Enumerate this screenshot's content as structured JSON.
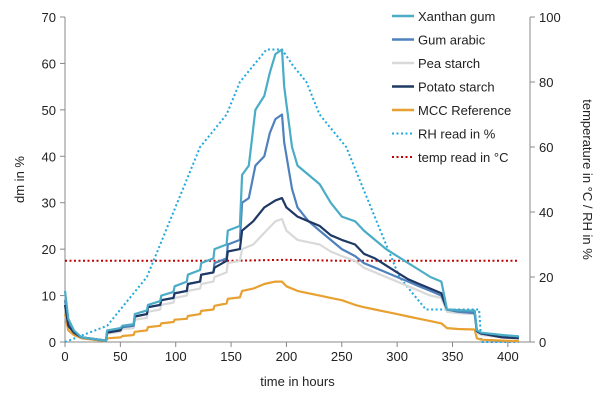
{
  "chart_data": {
    "type": "line",
    "xlabel": "time in hours",
    "ylabel": "dm in %",
    "y2label": "temperature in °C / RH in %",
    "xlim": [
      0,
      420
    ],
    "ylim": [
      0,
      70
    ],
    "y2lim": [
      0,
      100
    ],
    "xticks": [
      0,
      50,
      100,
      150,
      200,
      250,
      300,
      350,
      400
    ],
    "yticks": [
      0,
      10,
      20,
      30,
      40,
      50,
      60,
      70
    ],
    "y2ticks": [
      0,
      20,
      40,
      60,
      80,
      100
    ],
    "grid": false,
    "legend_position": "top-right",
    "series": [
      {
        "name": "Xanthan gum",
        "axis": "left",
        "color": "#4aacc6",
        "dash": "solid",
        "x": [
          0,
          3,
          8,
          15,
          37,
          38,
          50,
          52,
          62,
          63,
          74,
          75,
          86,
          87,
          98,
          99,
          110,
          111,
          122,
          123,
          134,
          135,
          146,
          147,
          158,
          160,
          166,
          172,
          180,
          185,
          190,
          196,
          198,
          205,
          210,
          220,
          230,
          240,
          250,
          262,
          270,
          280,
          290,
          300,
          310,
          320,
          330,
          340,
          345,
          355,
          370,
          372,
          376,
          395,
          410
        ],
        "y": [
          11,
          5,
          2.5,
          1,
          0.3,
          2.5,
          3,
          3.5,
          3.8,
          6,
          6.8,
          8,
          8.8,
          10,
          10.8,
          12,
          13,
          14.5,
          15.5,
          17,
          18,
          20,
          21,
          24,
          25,
          36,
          38,
          50,
          53,
          58,
          62,
          63,
          55,
          42,
          38,
          36,
          34,
          30,
          27,
          26,
          24,
          22,
          20,
          18.5,
          17,
          15.5,
          14,
          13,
          7,
          6.8,
          6.7,
          2.5,
          2,
          1.5,
          1.2
        ]
      },
      {
        "name": "Gum arabic",
        "axis": "left",
        "color": "#4f81bd",
        "dash": "solid",
        "x": [
          0,
          3,
          8,
          15,
          37,
          38,
          50,
          52,
          62,
          63,
          74,
          75,
          86,
          87,
          98,
          99,
          110,
          111,
          122,
          123,
          134,
          135,
          146,
          147,
          158,
          160,
          166,
          172,
          180,
          185,
          190,
          196,
          198,
          205,
          210,
          220,
          230,
          240,
          250,
          262,
          270,
          280,
          290,
          300,
          310,
          320,
          330,
          340,
          345,
          355,
          370,
          372,
          376,
          395,
          410
        ],
        "y": [
          9,
          4,
          2,
          1,
          0.3,
          2.2,
          2.8,
          3.2,
          3.5,
          5.5,
          6,
          7.5,
          8,
          9,
          9.5,
          10.5,
          11,
          12.5,
          13,
          14.5,
          15,
          17,
          18,
          21,
          22,
          30,
          31,
          38,
          40,
          45,
          48,
          49,
          43,
          33,
          29,
          26,
          24,
          22,
          20,
          18.5,
          17,
          16,
          15,
          14,
          13,
          12,
          11,
          10,
          7,
          6.5,
          6.2,
          2.3,
          1.8,
          1.2,
          1
        ]
      },
      {
        "name": "Pea starch",
        "axis": "left",
        "color": "#d9d9d9",
        "dash": "solid",
        "x": [
          0,
          3,
          8,
          15,
          37,
          38,
          50,
          52,
          62,
          63,
          74,
          75,
          86,
          87,
          98,
          99,
          110,
          111,
          122,
          123,
          134,
          135,
          146,
          147,
          158,
          160,
          170,
          180,
          190,
          196,
          200,
          210,
          220,
          230,
          240,
          250,
          262,
          270,
          280,
          290,
          300,
          310,
          320,
          330,
          340,
          345,
          355,
          370,
          372,
          376,
          395,
          410
        ],
        "y": [
          8,
          3.5,
          2,
          1,
          0.3,
          1.8,
          2.2,
          2.8,
          3,
          4.8,
          5.2,
          6.5,
          7,
          8,
          8.5,
          9.5,
          10,
          11,
          11.5,
          12.5,
          13,
          14,
          15,
          17,
          17.5,
          20,
          21,
          23.5,
          26,
          26.5,
          24,
          22,
          21.5,
          21,
          19.5,
          18.5,
          17.5,
          16,
          15,
          14,
          13,
          12,
          11,
          10,
          9.5,
          6.5,
          6.2,
          6,
          2,
          1.5,
          1,
          0.8
        ]
      },
      {
        "name": "Potato starch",
        "axis": "left",
        "color": "#1f3864",
        "dash": "solid",
        "x": [
          0,
          3,
          8,
          15,
          37,
          38,
          50,
          52,
          62,
          63,
          74,
          75,
          86,
          87,
          98,
          99,
          110,
          111,
          122,
          123,
          134,
          135,
          146,
          147,
          158,
          160,
          170,
          180,
          190,
          196,
          200,
          210,
          220,
          230,
          240,
          250,
          262,
          270,
          280,
          290,
          300,
          310,
          320,
          330,
          340,
          345,
          355,
          370,
          372,
          376,
          395,
          410
        ],
        "y": [
          8,
          3.5,
          2,
          1,
          0.3,
          2,
          2.5,
          3.5,
          3.8,
          5.5,
          6,
          7.5,
          8,
          9,
          9.5,
          10.5,
          11,
          12.5,
          13,
          14.5,
          15,
          16,
          17.5,
          19.5,
          20,
          24,
          26,
          29,
          30.5,
          31,
          29,
          27,
          26,
          25,
          23,
          22,
          21,
          19,
          18,
          16.5,
          15,
          13.5,
          12.5,
          11.5,
          10.5,
          7,
          6.8,
          6.7,
          2.3,
          1.8,
          1,
          0.8
        ]
      },
      {
        "name": "MCC Reference",
        "axis": "left",
        "color": "#e8a030",
        "dash": "solid",
        "x": [
          0,
          3,
          8,
          15,
          37,
          38,
          50,
          52,
          62,
          63,
          74,
          75,
          86,
          87,
          98,
          99,
          110,
          111,
          122,
          123,
          134,
          135,
          146,
          147,
          158,
          160,
          170,
          180,
          190,
          196,
          200,
          210,
          220,
          230,
          240,
          250,
          262,
          270,
          280,
          290,
          300,
          310,
          320,
          330,
          340,
          345,
          355,
          370,
          372,
          376,
          395,
          410
        ],
        "y": [
          6,
          2.5,
          1.5,
          0.8,
          0.2,
          0.8,
          1,
          1.3,
          1.5,
          2.2,
          2.5,
          3.2,
          3.5,
          4,
          4.3,
          4.8,
          5,
          5.6,
          6,
          6.7,
          7,
          7.8,
          8.3,
          9.3,
          9.6,
          11,
          11.5,
          12.5,
          13,
          13,
          12,
          11,
          10.5,
          10,
          9.5,
          9,
          8,
          7.5,
          7,
          6.5,
          6,
          5.5,
          5,
          4.5,
          4,
          3,
          2.8,
          2.7,
          0.8,
          0.5,
          0.3,
          0.2
        ]
      },
      {
        "name": "RH read in %",
        "axis": "right",
        "color": "#1fa8e0",
        "dash": "dotted",
        "x": [
          0,
          38,
          50,
          62,
          74,
          86,
          98,
          110,
          122,
          134,
          146,
          158,
          170,
          182,
          196,
          206,
          218,
          230,
          242,
          254,
          266,
          278,
          290,
          302,
          314,
          326,
          338,
          350,
          374,
          376,
          410
        ],
        "y": [
          0,
          5,
          10,
          15,
          20,
          30,
          40,
          50,
          60,
          65,
          70,
          80,
          85,
          90,
          90,
          85,
          80,
          70,
          65,
          60,
          50,
          40,
          30,
          20,
          15,
          10,
          10,
          10,
          10,
          0,
          0
        ]
      },
      {
        "name": "temp read in °C",
        "axis": "right",
        "color": "#c00000",
        "dash": "dotted",
        "x": [
          0,
          50,
          150,
          200,
          250,
          350,
          410
        ],
        "y": [
          25,
          25,
          25,
          25.3,
          25,
          25,
          25
        ]
      }
    ]
  }
}
